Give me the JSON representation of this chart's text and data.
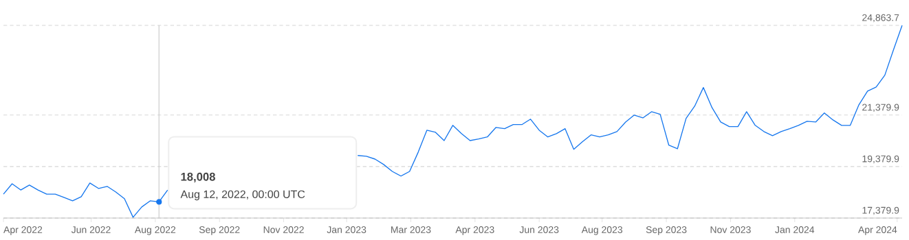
{
  "chart_data": {
    "type": "line",
    "series": [
      {
        "color": "#1677ee",
        "values": [
          18310,
          18710,
          18470,
          18660,
          18470,
          18310,
          18310,
          18180,
          18050,
          18210,
          18740,
          18530,
          18610,
          18390,
          18130,
          17410,
          17810,
          18050,
          18008,
          18470,
          null,
          null,
          null,
          null,
          null,
          null,
          null,
          null,
          null,
          null,
          null,
          null,
          null,
          null,
          null,
          null,
          null,
          null,
          null,
          null,
          null,
          19810,
          19780,
          19670,
          19460,
          19190,
          19010,
          19190,
          19940,
          20790,
          20710,
          20390,
          20980,
          20660,
          20390,
          20450,
          20530,
          20900,
          20850,
          21010,
          21010,
          21220,
          20790,
          20530,
          20660,
          20850,
          20050,
          20340,
          20610,
          20530,
          20610,
          20740,
          21110,
          21380,
          21270,
          21510,
          21410,
          20210,
          20070,
          21250,
          21730,
          22450,
          21670,
          21110,
          20930,
          20930,
          21510,
          20980,
          20740,
          20580,
          20740,
          20850,
          20980,
          21140,
          21110,
          21460,
          21190,
          20980,
          20980,
          21780,
          22310,
          22470,
          22930,
          23910,
          24863.7
        ]
      },
      {
        "type": "scatter",
        "color": "#1677ee",
        "marker": "circle",
        "x": [
          "2022-08-12"
        ],
        "values": [
          18008
        ]
      }
    ],
    "x": [
      "2022-04-08",
      "2022-04-15",
      "2022-04-22",
      "2022-04-29",
      "2022-05-06",
      "2022-05-13",
      "2022-05-20",
      "2022-05-27",
      "2022-06-03",
      "2022-06-10",
      "2022-06-17",
      "2022-06-24",
      "2022-07-01",
      "2022-07-08",
      "2022-07-15",
      "2022-07-22",
      "2022-07-29",
      "2022-08-05",
      "2022-08-12",
      "2022-08-19",
      "2022-08-26",
      "2022-09-02",
      "2022-09-09",
      "2022-09-16",
      "2022-09-23",
      "2022-09-30",
      "2022-10-07",
      "2022-10-14",
      "2022-10-21",
      "2022-10-28",
      "2022-11-04",
      "2022-11-11",
      "2022-11-18",
      "2022-11-25",
      "2022-12-02",
      "2022-12-09",
      "2022-12-16",
      "2022-12-23",
      "2022-12-30",
      "2023-01-06",
      "2023-01-13",
      "2023-01-20",
      "2023-01-27",
      "2023-02-03",
      "2023-02-10",
      "2023-02-17",
      "2023-02-24",
      "2023-03-03",
      "2023-03-10",
      "2023-03-17",
      "2023-03-24",
      "2023-03-31",
      "2023-04-07",
      "2023-04-14",
      "2023-04-21",
      "2023-04-28",
      "2023-05-05",
      "2023-05-12",
      "2023-05-19",
      "2023-05-26",
      "2023-06-02",
      "2023-06-09",
      "2023-06-16",
      "2023-06-23",
      "2023-06-30",
      "2023-07-07",
      "2023-07-14",
      "2023-07-21",
      "2023-07-28",
      "2023-08-04",
      "2023-08-11",
      "2023-08-18",
      "2023-08-25",
      "2023-09-01",
      "2023-09-08",
      "2023-09-15",
      "2023-09-22",
      "2023-09-29",
      "2023-10-06",
      "2023-10-13",
      "2023-10-20",
      "2023-10-27",
      "2023-11-03",
      "2023-11-10",
      "2023-11-17",
      "2023-11-24",
      "2023-12-01",
      "2023-12-08",
      "2023-12-15",
      "2023-12-22",
      "2023-12-29",
      "2024-01-05",
      "2024-01-12",
      "2024-01-19",
      "2024-01-26",
      "2024-02-02",
      "2024-02-09",
      "2024-02-16",
      "2024-02-23",
      "2024-03-01",
      "2024-03-08",
      "2024-03-15",
      "2024-03-22",
      "2024-03-29",
      "2024-04-05"
    ],
    "xlim": [
      "2022-04-08",
      "2024-04-05"
    ],
    "xticks": [
      {
        "value": "2022-04-08",
        "label": "Apr 2022"
      },
      {
        "value": "2022-06-18",
        "label": "Jun 2022"
      },
      {
        "value": "2022-08-09",
        "label": "Aug 2022"
      },
      {
        "value": "2022-09-30",
        "label": "Sep 2022"
      },
      {
        "value": "2022-11-21",
        "label": "Nov 2022"
      },
      {
        "value": "2023-01-11",
        "label": "Jan 2023"
      },
      {
        "value": "2023-03-04",
        "label": "Mar 2023"
      },
      {
        "value": "2023-04-25",
        "label": "Apr 2023"
      },
      {
        "value": "2023-06-16",
        "label": "Jun 2023"
      },
      {
        "value": "2023-08-06",
        "label": "Aug 2023"
      },
      {
        "value": "2023-09-27",
        "label": "Sep 2023"
      },
      {
        "value": "2023-11-18",
        "label": "Nov 2023"
      },
      {
        "value": "2024-01-09",
        "label": "Jan 2024"
      },
      {
        "value": "2024-04-01",
        "label": "Apr 2024"
      }
    ],
    "ylim": [
      17379.9,
      24863.7
    ],
    "yticks": [
      {
        "value": 17379.9,
        "label": "17,379.9"
      },
      {
        "value": 19379.9,
        "label": "19,379.9"
      },
      {
        "value": 21379.9,
        "label": "21,379.9"
      },
      {
        "value": 24863.7,
        "label": "24,863.7"
      }
    ],
    "grid": "y",
    "ref_lines": [
      {
        "axis": "x",
        "value": "2022-08-12",
        "color": "#cccccc"
      }
    ],
    "annotations": [
      "18,008",
      "Aug 12, 2022, 00:00 UTC"
    ]
  }
}
